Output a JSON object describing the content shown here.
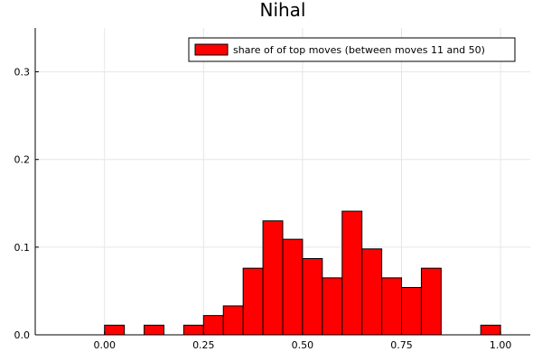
{
  "chart_data": {
    "type": "bar",
    "title": "Nihal",
    "xlabel": "",
    "ylabel": "",
    "xlim": [
      -0.175,
      1.075
    ],
    "ylim": [
      0,
      0.35
    ],
    "xticks": [
      "0.00",
      "0.25",
      "0.50",
      "0.75",
      "1.00"
    ],
    "yticks": [
      "0.0",
      "0.1",
      "0.2",
      "0.3"
    ],
    "grid": true,
    "legend_position": "top-right",
    "series": [
      {
        "name": "share of of top moves (between moves 11 and 50)",
        "color": "#ff0000",
        "bin_width": 0.05,
        "bin_start": [
          0.0,
          0.1,
          0.2,
          0.25,
          0.3,
          0.35,
          0.4,
          0.45,
          0.5,
          0.55,
          0.6,
          0.65,
          0.7,
          0.75,
          0.8,
          0.95
        ],
        "values": [
          0.011,
          0.011,
          0.011,
          0.022,
          0.033,
          0.076,
          0.13,
          0.109,
          0.087,
          0.065,
          0.141,
          0.098,
          0.065,
          0.054,
          0.076,
          0.011
        ]
      }
    ]
  }
}
